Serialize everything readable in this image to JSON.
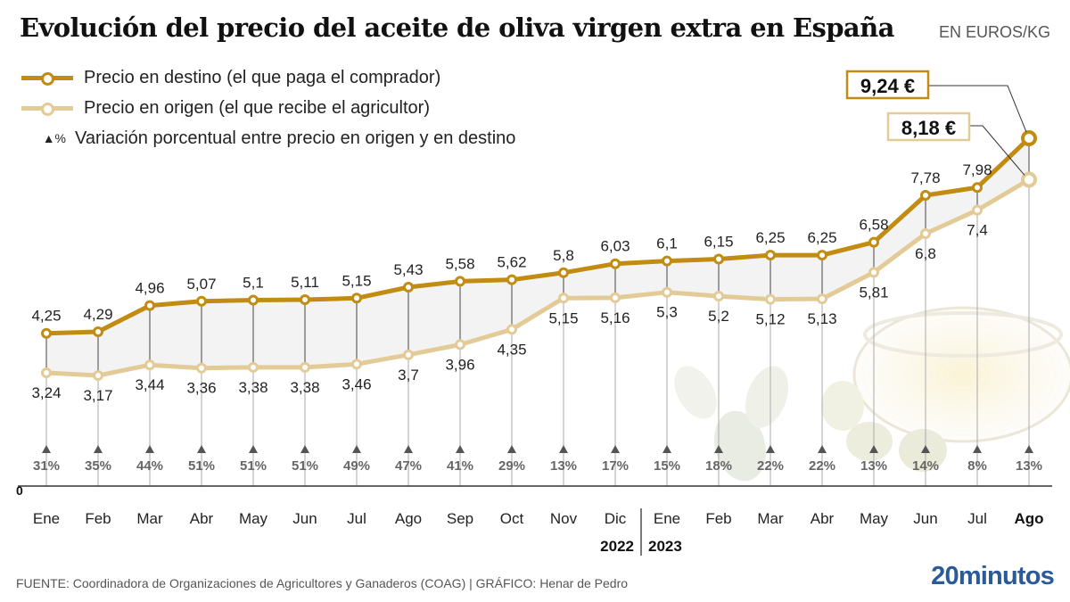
{
  "title": "Evolución del precio del aceite de oliva virgen extra en España",
  "units": "EN EUROS/KG",
  "legend": [
    {
      "key": "destino",
      "label": "Precio en destino (el que paga el comprador)",
      "color": "#c28b12"
    },
    {
      "key": "origen",
      "label": "Precio en origen (el que recibe el agricultor)",
      "color": "#e3cb97"
    },
    {
      "key": "variacion",
      "symbol": "▲%",
      "label": "Variación porcentual entre precio en origen y en destino",
      "color": "#222222"
    }
  ],
  "callouts": {
    "destino_last": "9,24 €",
    "origen_last": "8,18 €"
  },
  "source": "FUENTE: Coordinadora de Organizaciones de Agricultores y Ganaderos (COAG)  |  GRÁFICO: Henar de Pedro",
  "logo": "20minutos",
  "chart_data": {
    "type": "line",
    "title": "Evolución del precio del aceite de oliva virgen extra en España",
    "ylabel": "EN EUROS/KG",
    "xlabel": "",
    "y_zero_label": "0",
    "ylim": [
      0,
      10
    ],
    "grid": false,
    "legend_position": "top-left",
    "categories": [
      "Ene",
      "Feb",
      "Mar",
      "Abr",
      "May",
      "Jun",
      "Jul",
      "Ago",
      "Sep",
      "Oct",
      "Nov",
      "Dic",
      "Ene",
      "Feb",
      "Mar",
      "Abr",
      "May",
      "Jun",
      "Jul",
      "Ago"
    ],
    "highlight_category_index": 19,
    "year_labels": [
      {
        "label": "2022",
        "under_index": 11
      },
      {
        "label": "2023",
        "under_index": 12
      }
    ],
    "series": [
      {
        "name": "Precio en destino (el que paga el comprador)",
        "color": "#c28b12",
        "values": [
          4.25,
          4.29,
          4.96,
          5.07,
          5.1,
          5.11,
          5.15,
          5.43,
          5.58,
          5.62,
          5.8,
          6.03,
          6.1,
          6.15,
          6.25,
          6.25,
          6.58,
          7.78,
          7.98,
          9.24
        ],
        "labels": [
          "4,25",
          "4,29",
          "4,96",
          "5,07",
          "5,1",
          "5,11",
          "5,15",
          "5,43",
          "5,58",
          "5,62",
          "5,8",
          "6,03",
          "6,1",
          "6,15",
          "6,25",
          "6,25",
          "6,58",
          "7,78",
          "7,98",
          "9,24 €"
        ]
      },
      {
        "name": "Precio en origen (el que recibe el agricultor)",
        "color": "#e3cb97",
        "values": [
          3.24,
          3.17,
          3.44,
          3.36,
          3.38,
          3.38,
          3.46,
          3.7,
          3.96,
          4.35,
          5.15,
          5.16,
          5.3,
          5.2,
          5.12,
          5.13,
          5.81,
          6.8,
          7.4,
          8.18
        ],
        "labels": [
          "3,24",
          "3,17",
          "3,44",
          "3,36",
          "3,38",
          "3,38",
          "3,46",
          "3,7",
          "3,96",
          "4,35",
          "5,15",
          "5,16",
          "5,3",
          "5,2",
          "5,12",
          "5,13",
          "5,81",
          "6,8",
          "7,4",
          "8,18 €"
        ]
      }
    ],
    "variation_pct": [
      "31%",
      "35%",
      "44%",
      "51%",
      "51%",
      "51%",
      "49%",
      "47%",
      "41%",
      "29%",
      "13%",
      "17%",
      "15%",
      "18%",
      "22%",
      "22%",
      "13%",
      "14%",
      "8%",
      "13%"
    ]
  }
}
